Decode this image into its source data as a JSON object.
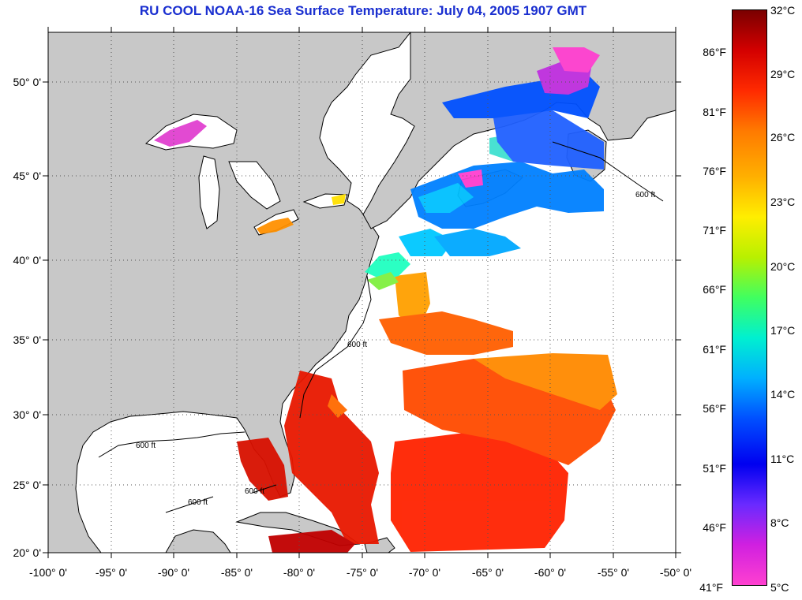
{
  "title": "RU COOL  NOAA-16  Sea Surface Temperature:  July 04, 2005 1907 GMT",
  "latitude_labels": [
    "50° 0'",
    "45° 0'",
    "40° 0'",
    "35° 0'",
    "30° 0'",
    "25° 0'",
    "20° 0'"
  ],
  "longitude_labels": [
    "-100° 0'",
    "-95° 0'",
    "-90° 0'",
    "-85° 0'",
    "-80° 0'",
    "-75° 0'",
    "-70° 0'",
    "-65° 0'",
    "-60° 0'",
    "-55° 0'",
    "-50° 0'"
  ],
  "depth_contour_label": "600 ft",
  "colorbar": {
    "celsius_labels": [
      "32°C",
      "29°C",
      "26°C",
      "23°C",
      "20°C",
      "17°C",
      "14°C",
      "11°C",
      "8°C",
      "5°C"
    ],
    "fahrenheit_labels": [
      "86°F",
      "81°F",
      "76°F",
      "71°F",
      "66°F",
      "61°F",
      "56°F",
      "51°F",
      "46°F",
      "41°F"
    ],
    "colors": [
      "#7a0000",
      "#d40000",
      "#ff2a00",
      "#ff7a00",
      "#ffb000",
      "#ffee00",
      "#b8f000",
      "#40ff60",
      "#00f0d0",
      "#00b0ff",
      "#0050ff",
      "#0000f0",
      "#6a2aff",
      "#d020e0",
      "#ff40d0"
    ]
  },
  "colors": {
    "land": "#c8c8c8",
    "ocean_no_data": "#ffffff",
    "title": "#1a2fd0"
  }
}
